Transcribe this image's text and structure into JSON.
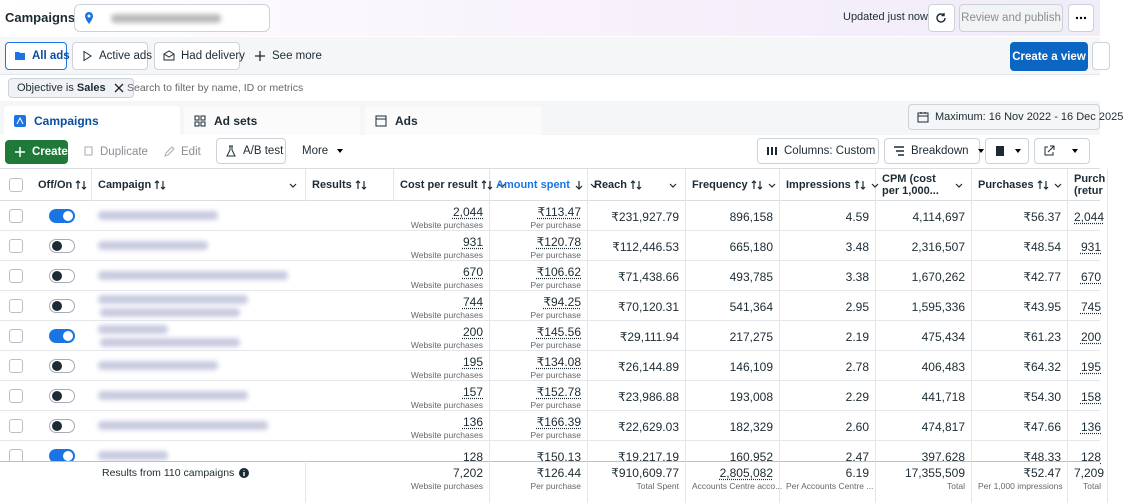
{
  "header": {
    "title": "Campaigns",
    "status": "Updated just now",
    "publish": "Review and publish"
  },
  "view_buttons": [
    "All ads",
    "Active ads",
    "Had delivery",
    "See more"
  ],
  "create_view": "Create a view",
  "filter": {
    "chip_label": "Objective is",
    "chip_value": "Sales",
    "search_placeholder": "Search to filter by name, ID or metrics"
  },
  "tabs": [
    "Campaigns",
    "Ad sets",
    "Ads"
  ],
  "date_range": "Maximum: 16 Nov 2022 - 16 Dec 2025",
  "actions": [
    "Create",
    "Duplicate",
    "Edit",
    "A/B test",
    "More",
    "Columns: Custom",
    "Breakdown"
  ],
  "table": {
    "columns": [
      "Off/On",
      "Campaign",
      "Results",
      "Cost per result",
      "Amount spent",
      "Reach",
      "Frequency",
      "Impressions",
      "CPM (cost per 1,000...",
      "Purchases",
      "Purch (retur"
    ],
    "rows": [
      {
        "on": true,
        "results": "2,044",
        "results_note": "Website purchases",
        "cost": "₹113.47",
        "cost_note": "Per purchase",
        "spent": "₹231,927.79",
        "reach": "896,158",
        "frequency": "4.59",
        "impressions": "4,114,697",
        "cpm": "₹56.37",
        "purchases": "2,044"
      },
      {
        "on": false,
        "results": "931",
        "results_note": "Website purchases",
        "cost": "₹120.78",
        "cost_note": "Per purchase",
        "spent": "₹112,446.53",
        "reach": "665,180",
        "frequency": "3.48",
        "impressions": "2,316,507",
        "cpm": "₹48.54",
        "purchases": "931"
      },
      {
        "on": false,
        "results": "670",
        "results_note": "Website purchases",
        "cost": "₹106.62",
        "cost_note": "Per purchase",
        "spent": "₹71,438.66",
        "reach": "493,785",
        "frequency": "3.38",
        "impressions": "1,670,262",
        "cpm": "₹42.77",
        "purchases": "670"
      },
      {
        "on": false,
        "results": "744",
        "results_note": "Website purchases",
        "cost": "₹94.25",
        "cost_note": "Per purchase",
        "spent": "₹70,120.31",
        "reach": "541,364",
        "frequency": "2.95",
        "impressions": "1,595,336",
        "cpm": "₹43.95",
        "purchases": "745"
      },
      {
        "on": true,
        "results": "200",
        "results_note": "Website purchases",
        "cost": "₹145.56",
        "cost_note": "Per purchase",
        "spent": "₹29,111.94",
        "reach": "217,275",
        "frequency": "2.19",
        "impressions": "475,434",
        "cpm": "₹61.23",
        "purchases": "200"
      },
      {
        "on": false,
        "results": "195",
        "results_note": "Website purchases",
        "cost": "₹134.08",
        "cost_note": "Per purchase",
        "spent": "₹26,144.89",
        "reach": "146,109",
        "frequency": "2.78",
        "impressions": "406,483",
        "cpm": "₹64.32",
        "purchases": "195"
      },
      {
        "on": false,
        "results": "157",
        "results_note": "Website purchases",
        "cost": "₹152.78",
        "cost_note": "Per purchase",
        "spent": "₹23,986.88",
        "reach": "193,008",
        "frequency": "2.29",
        "impressions": "441,718",
        "cpm": "₹54.30",
        "purchases": "158"
      },
      {
        "on": false,
        "results": "136",
        "results_note": "Website purchases",
        "cost": "₹166.39",
        "cost_note": "Per purchase",
        "spent": "₹22,629.03",
        "reach": "182,329",
        "frequency": "2.60",
        "impressions": "474,817",
        "cpm": "₹47.66",
        "purchases": "136"
      },
      {
        "on": true,
        "results": "128",
        "cost": "₹150.13",
        "spent": "₹19,217.19",
        "reach": "160,952",
        "frequency": "2.47",
        "impressions": "397,628",
        "cpm": "₹48.33",
        "purchases": "128"
      }
    ],
    "totals": {
      "label": "Results from 110 campaigns",
      "results": "7,202",
      "results_note": "Website purchases",
      "cost": "₹126.44",
      "cost_note": "Per purchase",
      "spent": "₹910,609.77",
      "spent_note": "Total Spent",
      "reach": "2,805,082",
      "reach_note": "Accounts Centre acco...",
      "frequency": "6.19",
      "frequency_note": "Per Accounts Centre ...",
      "impressions": "17,355,509",
      "impressions_note": "Total",
      "cpm": "₹52.47",
      "cpm_note": "Per 1,000 impressions",
      "purchases": "7,209",
      "purchases_note": "Total"
    }
  }
}
